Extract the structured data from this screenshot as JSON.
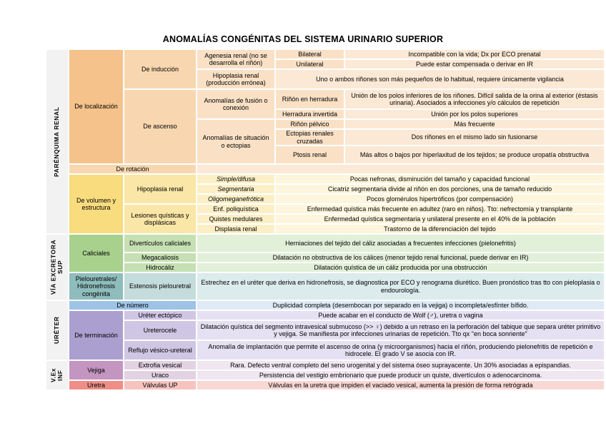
{
  "title": "ANOMALÍAS CONGÉNITAS DEL SISTEMA URINARIO SUPERIOR",
  "palette": {
    "gray": "#F2F2F2",
    "o1": "#F4C28A",
    "o2": "#F8D7B0",
    "o3": "#FAE1C6",
    "o4": "#FBE9D5",
    "y1": "#F8DC7E",
    "y2": "#FAE6A6",
    "y3": "#FCEFC6",
    "y4": "#FDF5DC",
    "g1": "#A9D18E",
    "g2": "#C5E0B3",
    "g3": "#E2EFD9",
    "t1": "#8FBCBC",
    "t2": "#C4DCDC",
    "t3": "#DCEBEB",
    "b1": "#9DC3E6",
    "b2": "#DEEAF6",
    "p1": "#AB9FD0",
    "p2": "#CFC6E4",
    "p3": "#E6E1F2",
    "m1": "#C495C1",
    "m2": "#E2D2E2",
    "m3": "#F0E6F0",
    "r1": "#EE8E86",
    "r2": "#F6C3BF",
    "r3": "#F9D7D3"
  },
  "table": {
    "cells": [
      {
        "name": "section-parenquima-renal",
        "text": "PARÉNQUIMA RENAL",
        "r": 1,
        "c": 1,
        "rs": 15,
        "cs": 1,
        "bg": "gray",
        "vertical": true
      },
      {
        "name": "section-via-excretora-sup",
        "text": "VÍA EXCRETORA SUP",
        "r": 16,
        "c": 1,
        "rs": 4,
        "cs": 1,
        "bg": "gray",
        "vertical": true
      },
      {
        "name": "section-ureter",
        "text": "URÉTER",
        "r": 20,
        "c": 1,
        "rs": 4,
        "cs": 1,
        "bg": "gray",
        "vertical": true
      },
      {
        "name": "section-vex-inf",
        "text": "V.Ex INF",
        "r": 24,
        "c": 1,
        "rs": 3,
        "cs": 1,
        "bg": "gray",
        "vertical": true
      },
      {
        "name": "group-de-localizacion",
        "text": "De localización",
        "r": 1,
        "c": 2,
        "rs": 8,
        "cs": 1,
        "bg": "o1"
      },
      {
        "name": "group-de-induccion",
        "text": "De inducción",
        "r": 1,
        "c": 3,
        "rs": 3,
        "cs": 1,
        "bg": "o2"
      },
      {
        "name": "cell-agenesia-renal",
        "text": "Agenesia renal (no se desarrolla el riñón)",
        "r": 1,
        "c": 4,
        "rs": 2,
        "cs": 1,
        "bg": "o3"
      },
      {
        "name": "cell-bilateral",
        "text": "Bilateral",
        "r": 1,
        "c": 5,
        "rs": 1,
        "cs": 1,
        "bg": "o3"
      },
      {
        "name": "desc-bilateral",
        "text": "Incompatible con la vida; Dx por ECO prenatal",
        "r": 1,
        "c": 6,
        "rs": 1,
        "cs": 1,
        "bg": "o4"
      },
      {
        "name": "cell-unilateral",
        "text": "Unilateral",
        "r": 2,
        "c": 5,
        "rs": 1,
        "cs": 1,
        "bg": "o3"
      },
      {
        "name": "desc-unilateral",
        "text": "Puede estar compensada o derivar en IR",
        "r": 2,
        "c": 6,
        "rs": 1,
        "cs": 1,
        "bg": "o4"
      },
      {
        "name": "cell-hipoplasia-renal-produccion",
        "text": "Hipoplasia renal (producción errónea)",
        "r": 3,
        "c": 4,
        "rs": 1,
        "cs": 1,
        "bg": "o3"
      },
      {
        "name": "desc-hipoplasia-renal-produccion",
        "text": "Uno o ambos riñones son más pequeños de lo habitual, requiere únicamente vigilancia",
        "r": 3,
        "c": 5,
        "rs": 1,
        "cs": 2,
        "bg": "o4"
      },
      {
        "name": "group-de-ascenso",
        "text": "De ascenso",
        "r": 4,
        "c": 3,
        "rs": 5,
        "cs": 1,
        "bg": "o2"
      },
      {
        "name": "cell-anomalias-fusion",
        "text": "Anomalías de fusión o conexión",
        "r": 4,
        "c": 4,
        "rs": 2,
        "cs": 1,
        "bg": "o3"
      },
      {
        "name": "cell-rinon-herradura",
        "text": "Riñón en herradura",
        "r": 4,
        "c": 5,
        "rs": 1,
        "cs": 1,
        "bg": "o3"
      },
      {
        "name": "desc-rinon-herradura",
        "text": "Unión de los polos inferiores de los riñones. Difícil salida de la orina al exterior (éstasis urinaria). Asociados a infecciones y/o cálculos de repetición",
        "r": 4,
        "c": 6,
        "rs": 1,
        "cs": 1,
        "bg": "o4"
      },
      {
        "name": "cell-herradura-invertida",
        "text": "Herradura invertida",
        "r": 5,
        "c": 5,
        "rs": 1,
        "cs": 1,
        "bg": "o3"
      },
      {
        "name": "desc-herradura-invertida",
        "text": "Unión por los polos superiores",
        "r": 5,
        "c": 6,
        "rs": 1,
        "cs": 1,
        "bg": "o4"
      },
      {
        "name": "cell-anomalias-situacion",
        "text": "Anomalías de situación o ectopias",
        "r": 6,
        "c": 4,
        "rs": 3,
        "cs": 1,
        "bg": "o3"
      },
      {
        "name": "cell-rinon-pelvico",
        "text": "Riñón pélvico",
        "r": 6,
        "c": 5,
        "rs": 1,
        "cs": 1,
        "bg": "o3"
      },
      {
        "name": "desc-rinon-pelvico",
        "text": "Más frecuente",
        "r": 6,
        "c": 6,
        "rs": 1,
        "cs": 1,
        "bg": "o4"
      },
      {
        "name": "cell-ectopias-renales-cruzadas",
        "text": "Ectopias renales cruzadas",
        "r": 7,
        "c": 5,
        "rs": 1,
        "cs": 1,
        "bg": "o3"
      },
      {
        "name": "desc-ectopias-renales-cruzadas",
        "text": "Dos riñones en el mismo lado sin fusionarse",
        "r": 7,
        "c": 6,
        "rs": 1,
        "cs": 1,
        "bg": "o4"
      },
      {
        "name": "cell-ptosis-renal",
        "text": "Ptosis renal",
        "r": 8,
        "c": 5,
        "rs": 1,
        "cs": 1,
        "bg": "o3"
      },
      {
        "name": "desc-ptosis-renal",
        "text": "Más altos o bajos por hiperlaxitud de los tejidos; se produce uropatía obstructiva",
        "r": 8,
        "c": 6,
        "rs": 1,
        "cs": 1,
        "bg": "o4"
      },
      {
        "name": "group-de-rotacion",
        "text": "De rotación",
        "r": 9,
        "c": 2,
        "rs": 1,
        "cs": 2,
        "bg": "o2"
      },
      {
        "name": "cell-de-rotacion-empty",
        "text": "",
        "r": 9,
        "c": 4,
        "rs": 1,
        "cs": 3,
        "bg": "o4"
      },
      {
        "name": "group-de-volumen-y-estructura",
        "text": "De volumen y estructura",
        "r": 10,
        "c": 2,
        "rs": 6,
        "cs": 1,
        "bg": "y1"
      },
      {
        "name": "group-hipoplasia-renal",
        "text": "Hipoplasia renal",
        "r": 10,
        "c": 3,
        "rs": 3,
        "cs": 1,
        "bg": "y2"
      },
      {
        "name": "cell-simple-difusa",
        "text": "Simple/difusa",
        "r": 10,
        "c": 4,
        "rs": 1,
        "cs": 1,
        "bg": "y3",
        "italic": true
      },
      {
        "name": "desc-simple-difusa",
        "text": "Pocas nefronas, disminución del tamaño y capacidad funcional",
        "r": 10,
        "c": 5,
        "rs": 1,
        "cs": 2,
        "bg": "y4"
      },
      {
        "name": "cell-segmentaria",
        "text": "Segmentaria",
        "r": 11,
        "c": 4,
        "rs": 1,
        "cs": 1,
        "bg": "y3",
        "italic": true
      },
      {
        "name": "desc-segmentaria",
        "text": "Cicatriz segmentaria divide al riñón en dos porciones, una de tamaño reducido",
        "r": 11,
        "c": 5,
        "rs": 1,
        "cs": 2,
        "bg": "y4"
      },
      {
        "name": "cell-oligomeganefrotica",
        "text": "Oligomeganefrótica",
        "r": 12,
        "c": 4,
        "rs": 1,
        "cs": 1,
        "bg": "y3",
        "italic": true
      },
      {
        "name": "desc-oligomeganefrotica",
        "text": "Pocos glomérulos hipertróficos (por compensación)",
        "r": 12,
        "c": 5,
        "rs": 1,
        "cs": 2,
        "bg": "y4"
      },
      {
        "name": "group-lesiones-quisticas",
        "text": "Lesiones quísticas y displásicas",
        "r": 13,
        "c": 3,
        "rs": 3,
        "cs": 1,
        "bg": "y2"
      },
      {
        "name": "cell-enf-poliquistica",
        "text": "Enf. poliquística",
        "r": 13,
        "c": 4,
        "rs": 1,
        "cs": 1,
        "bg": "y3"
      },
      {
        "name": "desc-enf-poliquistica",
        "text": "Enfermedad quística más frecuente en adultez (raro en niños). Tto: nefrectomía y transplante",
        "r": 13,
        "c": 5,
        "rs": 1,
        "cs": 2,
        "bg": "y4"
      },
      {
        "name": "cell-quistes-medulares",
        "text": "Quistes medulares",
        "r": 14,
        "c": 4,
        "rs": 1,
        "cs": 1,
        "bg": "y3"
      },
      {
        "name": "desc-quistes-medulares",
        "text": "Enfermedad quística segmentaria y unilateral presente en el 40% de la población",
        "r": 14,
        "c": 5,
        "rs": 1,
        "cs": 2,
        "bg": "y4"
      },
      {
        "name": "cell-displasia-renal",
        "text": "Displasia renal",
        "r": 15,
        "c": 4,
        "rs": 1,
        "cs": 1,
        "bg": "y3"
      },
      {
        "name": "desc-displasia-renal",
        "text": "Trastorno de la diferenciación del tejido",
        "r": 15,
        "c": 5,
        "rs": 1,
        "cs": 2,
        "bg": "y4"
      },
      {
        "name": "group-caliciales",
        "text": "Caliciales",
        "r": 16,
        "c": 2,
        "rs": 3,
        "cs": 1,
        "bg": "g1"
      },
      {
        "name": "cell-diverticulos-caliciales",
        "text": "Divertículos caliciales",
        "r": 16,
        "c": 3,
        "rs": 1,
        "cs": 1,
        "bg": "g2"
      },
      {
        "name": "desc-diverticulos-caliciales",
        "text": "Herniaciones del tejido del cáliz asociadas a frecuentes infecciones (pielonefritis)",
        "r": 16,
        "c": 4,
        "rs": 1,
        "cs": 3,
        "bg": "g3"
      },
      {
        "name": "cell-megacaliosis",
        "text": "Megacaliosis",
        "r": 17,
        "c": 3,
        "rs": 1,
        "cs": 1,
        "bg": "g2"
      },
      {
        "name": "desc-megacaliosis",
        "text": "Dilatación no obstructiva de los cálices (menor tejido renal funcional, puede derivar en IR)",
        "r": 17,
        "c": 4,
        "rs": 1,
        "cs": 3,
        "bg": "g3"
      },
      {
        "name": "cell-hidrocaliz",
        "text": "Hidrocáliz",
        "r": 18,
        "c": 3,
        "rs": 1,
        "cs": 1,
        "bg": "g2"
      },
      {
        "name": "desc-hidrocaliz",
        "text": "Dilatación quística de un cáliz producida por una obstrucción",
        "r": 18,
        "c": 4,
        "rs": 1,
        "cs": 3,
        "bg": "g3"
      },
      {
        "name": "group-pielouretrales",
        "text": "Pielouretrales/ Hidronefrosis congénita",
        "r": 19,
        "c": 2,
        "rs": 1,
        "cs": 1,
        "bg": "t1"
      },
      {
        "name": "cell-estenosis-pielouretral",
        "text": "Estenosis pielouretral",
        "r": 19,
        "c": 3,
        "rs": 1,
        "cs": 1,
        "bg": "t2"
      },
      {
        "name": "desc-estenosis-pielouretral",
        "text": "Estrechez en el uréter que deriva en hidronefrosis, se diagnostica por ECO y renograma diurético. Buen pronóstico tras tto con pieloplasia o endourología.",
        "r": 19,
        "c": 4,
        "rs": 1,
        "cs": 3,
        "bg": "t3"
      },
      {
        "name": "group-de-numero",
        "text": "De número",
        "r": 20,
        "c": 2,
        "rs": 1,
        "cs": 2,
        "bg": "b1"
      },
      {
        "name": "desc-de-numero",
        "text": "Duplicidad completa (desembocan por separado en la vejiga) o incompleta/esfínter bífido.",
        "r": 20,
        "c": 4,
        "rs": 1,
        "cs": 3,
        "bg": "b2"
      },
      {
        "name": "group-de-terminacion",
        "text": "De terminación",
        "r": 21,
        "c": 2,
        "rs": 3,
        "cs": 1,
        "bg": "p1"
      },
      {
        "name": "cell-ureter-ectopico",
        "text": "Uréter ectópico",
        "r": 21,
        "c": 3,
        "rs": 1,
        "cs": 1,
        "bg": "p2"
      },
      {
        "name": "desc-ureter-ectopico",
        "text": "Puede acabar en el conducto de Wolf (♂), uretra o vagina",
        "r": 21,
        "c": 4,
        "rs": 1,
        "cs": 3,
        "bg": "p3"
      },
      {
        "name": "cell-ureterocele",
        "text": "Ureterocele",
        "r": 22,
        "c": 3,
        "rs": 1,
        "cs": 1,
        "bg": "p2"
      },
      {
        "name": "desc-ureterocele",
        "text": "Dilatación quística del segmento intravesical submucoso (>> ♀) debido a un retraso en la perforación del tabique que separa uréter primitivo y vejiga. Se manifiesta por infecciones urinarias de repetición. Tto qx \"en boca sonriente\"",
        "r": 22,
        "c": 4,
        "rs": 1,
        "cs": 3,
        "bg": "p3"
      },
      {
        "name": "cell-reflujo-vesico-ureteral",
        "text": "Reflujo vésico-ureteral",
        "r": 23,
        "c": 3,
        "rs": 1,
        "cs": 1,
        "bg": "p2"
      },
      {
        "name": "desc-reflujo-vesico-ureteral",
        "text": "Anomalía de implantación que permite el ascenso de orina (y microorganismos) hacia el riñón, produciendo pielonefritis de repetición e hidrocele. El grado V se asocia con IR.",
        "r": 23,
        "c": 4,
        "rs": 1,
        "cs": 3,
        "bg": "p3"
      },
      {
        "name": "group-vejiga",
        "text": "Vejiga",
        "r": 24,
        "c": 2,
        "rs": 2,
        "cs": 1,
        "bg": "m1"
      },
      {
        "name": "cell-extrofia-vesical",
        "text": "Extrofia vesical",
        "r": 24,
        "c": 3,
        "rs": 1,
        "cs": 1,
        "bg": "m2"
      },
      {
        "name": "desc-extrofia-vesical",
        "text": "Rara. Defecto ventral completo del seno urogenital y del sistema óseo suprayacente. Un 30% asociadas a epispandias.",
        "r": 24,
        "c": 4,
        "rs": 1,
        "cs": 3,
        "bg": "m3"
      },
      {
        "name": "cell-uraco",
        "text": "Uraco",
        "r": 25,
        "c": 3,
        "rs": 1,
        "cs": 1,
        "bg": "m2"
      },
      {
        "name": "desc-uraco",
        "text": "Persistencia del vestigio embrionario que puede producir un quiste, divertículos o adenocarcinoma.",
        "r": 25,
        "c": 4,
        "rs": 1,
        "cs": 3,
        "bg": "m3"
      },
      {
        "name": "group-uretra",
        "text": "Uretra",
        "r": 26,
        "c": 2,
        "rs": 1,
        "cs": 1,
        "bg": "r1"
      },
      {
        "name": "cell-valvulas-up",
        "text": "Válvulas UP",
        "r": 26,
        "c": 3,
        "rs": 1,
        "cs": 1,
        "bg": "r2"
      },
      {
        "name": "desc-valvulas-up",
        "text": "Válvulas en la uretra que impiden el vaciado vesical, aumenta la presión de forma retrógrada",
        "r": 26,
        "c": 4,
        "rs": 1,
        "cs": 3,
        "bg": "r3"
      }
    ]
  }
}
